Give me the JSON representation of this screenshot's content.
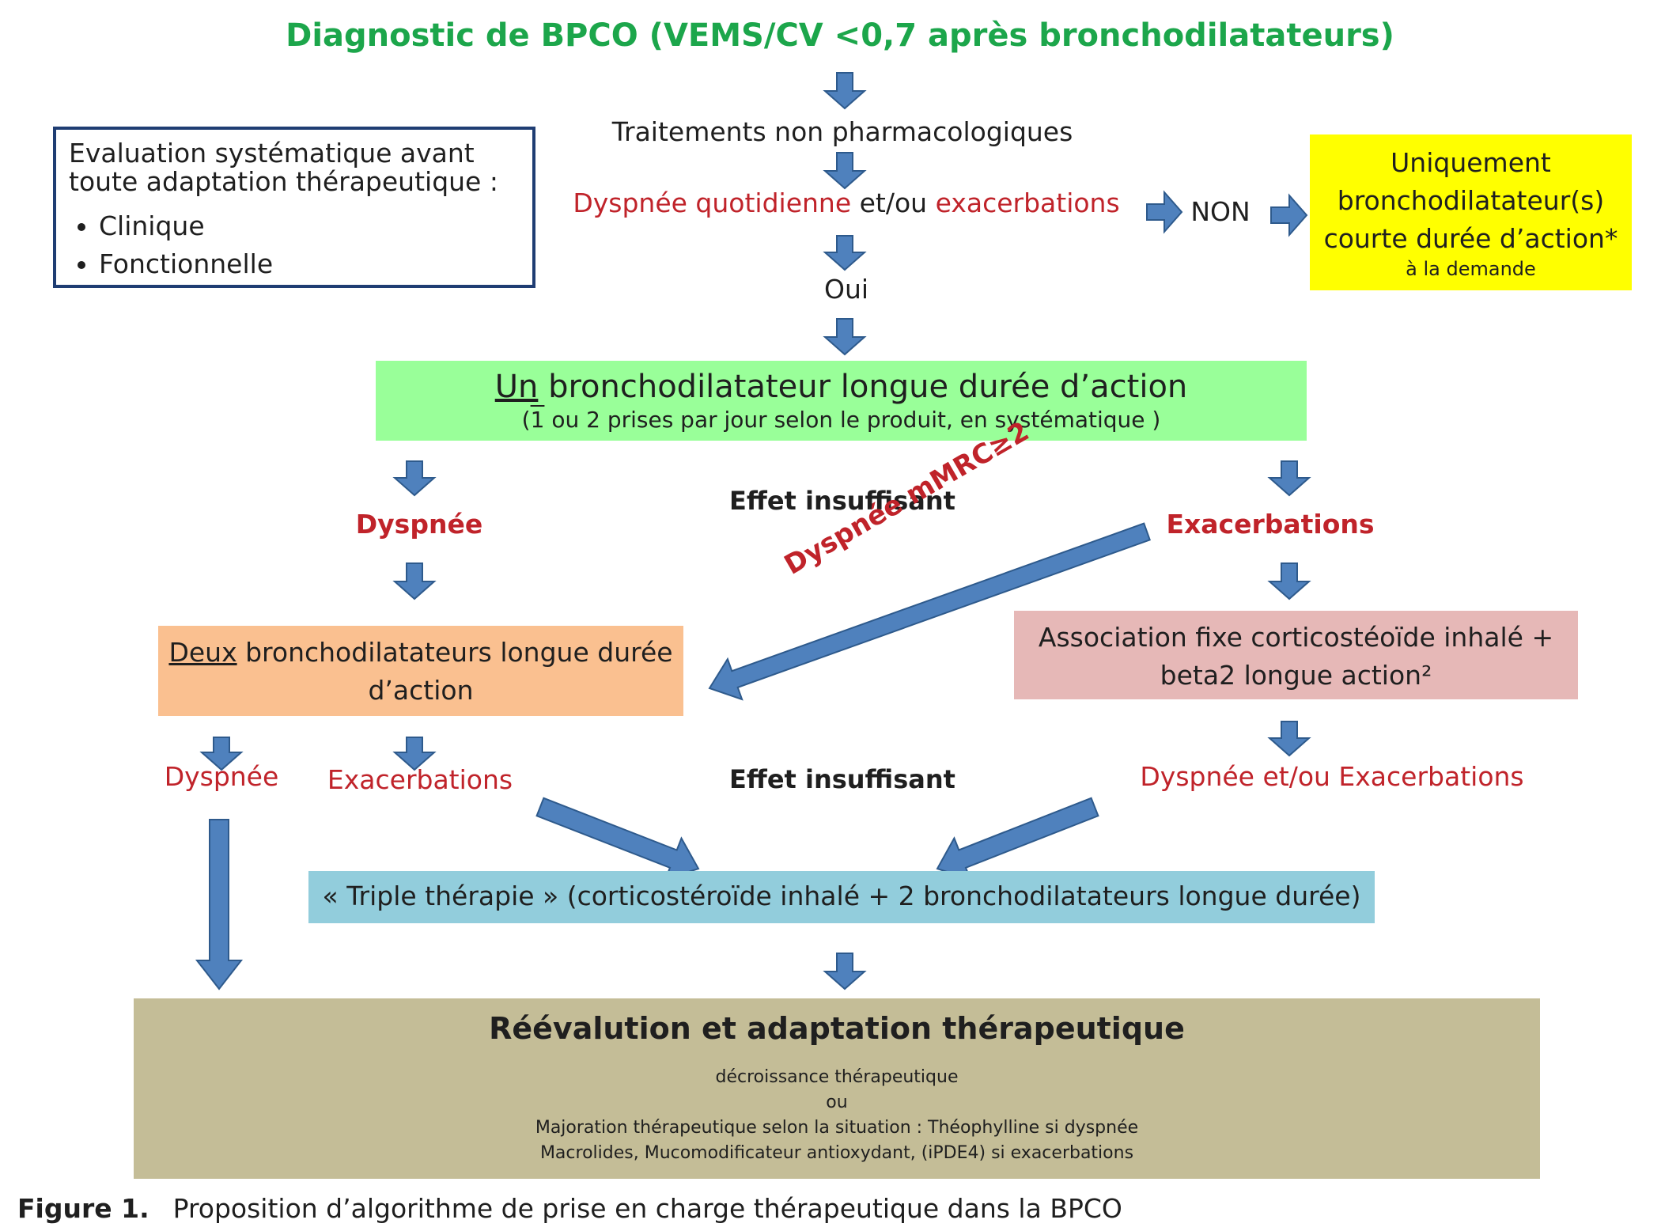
{
  "title": "Diagnostic de BPCO (VEMS/CV <0,7 après bronchodilatateurs)",
  "evaluation": {
    "line1": "Evaluation systématique avant",
    "line2": "toute adaptation thérapeutique :",
    "items": [
      "Clinique",
      "Fonctionnelle"
    ]
  },
  "step_nonpharma": "Traitements non pharmacologiques",
  "step_dyspnee": {
    "part1": "Dyspnée quotidienne",
    "part2": " et/ou ",
    "part3": "exacerbations"
  },
  "non_label": "NON",
  "oui_label": "Oui",
  "short_acting": {
    "line1": "Uniquement",
    "line2": "bronchodilatateur(s)",
    "line3": "courte durée d’action*",
    "line4": "à la demande"
  },
  "one_bronch": {
    "underlined": "Un",
    "rest": " bronchodilatateur longue durée d’action",
    "sub_open": "(",
    "sub_one": "1",
    "sub_rest": " ou  2 prises par jour selon le produit, en systématique )"
  },
  "effet_insuffisant_1": "Effet insuffisant",
  "dyspnee_label_1": "Dyspnée",
  "exacerbations_label_1": "Exacerbations",
  "dyspnee_mmrc": "Dyspnée mMRC≥2",
  "two_bronch": {
    "underlined": "Deux",
    "rest": " bronchodilatateurs longue durée",
    "line2": "d’action"
  },
  "ics_combo": {
    "line1": "Association fixe corticostéoïde inhalé +",
    "line2": "beta2 longue action²"
  },
  "dyspnee_label_2": "Dyspnée",
  "exacerbations_label_2": "Exacerbations",
  "effet_insuffisant_2": "Effet insuffisant",
  "dyspnee_exac_label": "Dyspnée et/ou Exacerbations",
  "triple": "« Triple thérapie » (corticostéroïde inhalé + 2 bronchodilatateurs longue durée)",
  "reevaluation": {
    "title": "Réévalution et adaptation thérapeutique",
    "line1": "décroissance thérapeutique",
    "line2": "ou",
    "line3": "Majoration thérapeutique selon la situation : Théophylline si dyspnée",
    "line4": "Macrolides, Mucomodificateur antioxydant, (iPDE4) si exacerbations"
  },
  "caption": {
    "label": "Figure 1.",
    "text": "Proposition d’algorithme de prise en charge thérapeutique dans la BPCO"
  },
  "colors": {
    "title_green": "#1ca64b",
    "red": "#c0232a",
    "arrow_blue": "#4f81bd",
    "arrow_stroke": "#2e5a8c",
    "yellow": "#ffff00",
    "green_box": "#99ff99",
    "orange_box": "#fac090",
    "pink_box": "#e6b8b7",
    "blue_box": "#92cddc",
    "olive_box": "#c4bd97",
    "navy_border": "#1f3d73"
  }
}
